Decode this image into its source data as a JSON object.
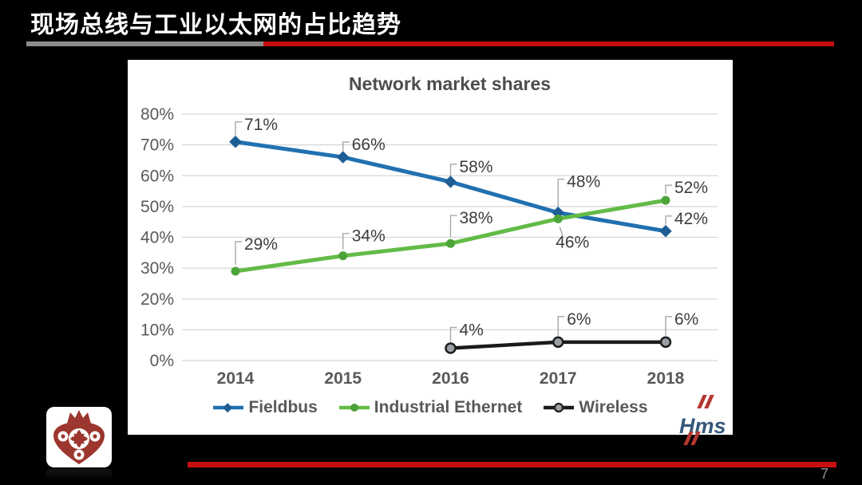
{
  "slide": {
    "title": "现场总线与工业以太网的占比趋势",
    "page_number": "7",
    "colors": {
      "accent_red": "#C50F0F",
      "rule_gray": "#8C8C8C",
      "background": "#000000"
    }
  },
  "logos": {
    "hms_text": "Hms",
    "left_badge": "crown-wheel-emblem"
  },
  "chart_data": {
    "type": "line",
    "title": "Network market shares",
    "categories": [
      "2014",
      "2015",
      "2016",
      "2017",
      "2018"
    ],
    "series": [
      {
        "name": "Fieldbus",
        "color": "#2170B0",
        "marker": "diamond",
        "marker_color": "#1E5E94",
        "values": [
          71,
          66,
          58,
          48,
          42
        ],
        "data_labels": [
          "71%",
          "66%",
          "58%",
          "48%",
          "42%"
        ]
      },
      {
        "name": "Industrial Ethernet",
        "color": "#62BB46",
        "marker": "circle",
        "marker_color": "#4CA338",
        "values": [
          29,
          34,
          38,
          46,
          52
        ],
        "data_labels": [
          "29%",
          "34%",
          "38%",
          "46%",
          "52%"
        ]
      },
      {
        "name": "Wireless",
        "color": "#1A1A1A",
        "marker": "circle-ring",
        "marker_color": "#9AA0A6",
        "values": [
          null,
          null,
          4,
          6,
          6
        ],
        "data_labels": [
          null,
          null,
          "4%",
          "6%",
          "6%"
        ]
      }
    ],
    "y_ticks": [
      "0%",
      "10%",
      "20%",
      "30%",
      "40%",
      "50%",
      "60%",
      "70%",
      "80%"
    ],
    "ylim": [
      0,
      80
    ],
    "grid": true,
    "legend_position": "bottom",
    "text_color": "#595959",
    "label_color": "#3D3D3D",
    "grid_color": "#D6D6D6",
    "leader_color": "#A8A8A8"
  }
}
